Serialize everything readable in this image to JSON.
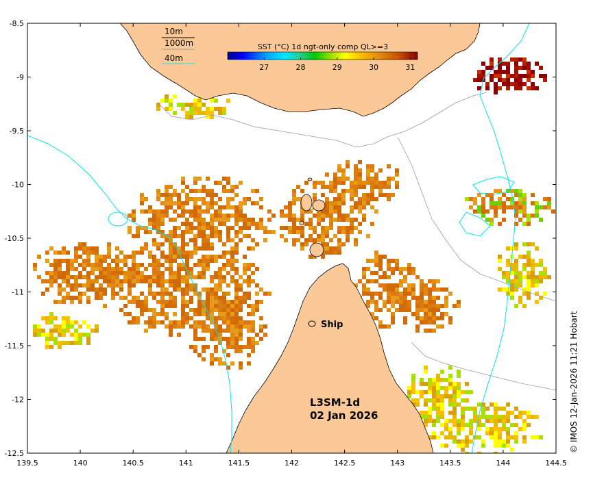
{
  "map": {
    "credit": "© IMOS 12-Jan-2026 11:21 Hobart",
    "product": "L3SM-1d",
    "date": "02 Jan 2026",
    "ship_label": "Ship",
    "lon_range": [
      139.5,
      144.5
    ],
    "lat_range": [
      -12.5,
      -8.5
    ],
    "x_ticks": [
      "139.5",
      "140",
      "140.5",
      "141",
      "141.5",
      "142",
      "142.5",
      "143",
      "143.5",
      "144",
      "144.5"
    ],
    "y_ticks": [
      "-8.5",
      "-9",
      "-9.5",
      "-10",
      "-10.5",
      "-11",
      "-11.5",
      "-12",
      "-12.5"
    ],
    "colors": {
      "land": "#fbc997",
      "water": "#ffffff",
      "contour_10m": "#000000",
      "contour_40m": "#00e5ee",
      "contour_1000m": "#999999"
    }
  },
  "colorbar": {
    "title": "SST (°C) 1d ngt-only comp QL>=3",
    "ticks": [
      "27",
      "28",
      "29",
      "30",
      "31"
    ],
    "range": [
      26,
      31.2
    ]
  },
  "contour_legend": {
    "item_10m": "10m",
    "item_1000m": "1000m",
    "item_40m": "40m"
  }
}
